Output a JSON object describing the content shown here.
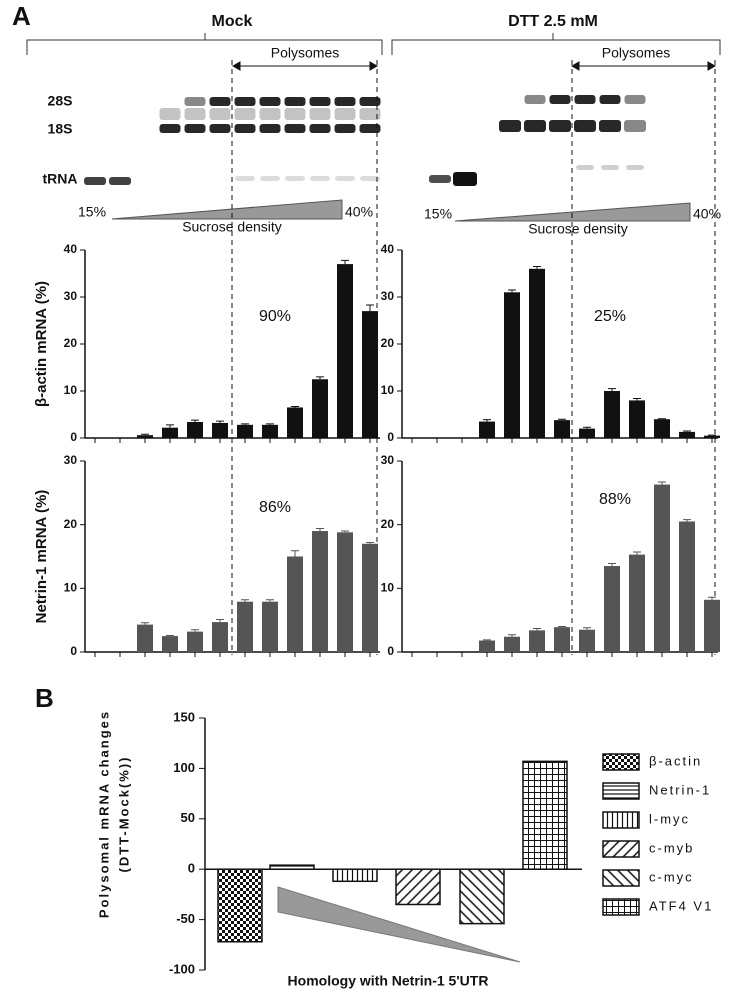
{
  "panel_labels": [
    "A",
    "B"
  ],
  "columns": [
    "Mock",
    "DTT 2.5 mM"
  ],
  "gel": {
    "bands": [
      "28S",
      "18S",
      "tRNA"
    ],
    "polysomes": "Polysomes",
    "low": "15%",
    "high": "40%",
    "gradient": "Sucrose density"
  },
  "chart_data": [
    {
      "type": "bar",
      "ylabel": "β-actin mRNA (%)",
      "annotation": "90%",
      "color": "#111111",
      "values": [
        0.6,
        2.2,
        3.4,
        3.2,
        2.8,
        2.8,
        6.5,
        12.5,
        37,
        27
      ],
      "errors": [
        0.2,
        0.6,
        0.4,
        0.4,
        0.2,
        0.2,
        0.2,
        0.5,
        0.8,
        1.3
      ],
      "ylim": [
        0,
        40
      ],
      "yticks": [
        0,
        10,
        20,
        30,
        40
      ]
    },
    {
      "type": "bar",
      "annotation": "25%",
      "color": "#111111",
      "values": [
        3.5,
        31,
        36,
        3.8,
        2,
        10,
        8,
        4,
        1.3,
        0.5
      ],
      "errors": [
        0.4,
        0.5,
        0.5,
        0.2,
        0.3,
        0.5,
        0.4,
        0.1,
        0.2,
        0.1
      ],
      "ylim": [
        0,
        40
      ],
      "yticks": [
        0,
        10,
        20,
        30,
        40
      ]
    },
    {
      "type": "bar",
      "ylabel": "Netrin-1 mRNA (%)",
      "annotation": "86%",
      "color": "#555555",
      "values": [
        4.3,
        2.5,
        3.2,
        4.7,
        7.9,
        7.9,
        15,
        19,
        18.8,
        17
      ],
      "errors": [
        0.3,
        0.1,
        0.3,
        0.4,
        0.3,
        0.3,
        0.9,
        0.4,
        0.2,
        0.2
      ],
      "ylim": [
        0,
        30
      ],
      "yticks": [
        0,
        10,
        20,
        30
      ]
    },
    {
      "type": "bar",
      "annotation": "88%",
      "color": "#555555",
      "values": [
        1.8,
        2.4,
        3.4,
        3.9,
        3.5,
        13.5,
        15.3,
        26.3,
        20.5,
        8.2
      ],
      "errors": [
        0.1,
        0.3,
        0.3,
        0.1,
        0.3,
        0.4,
        0.4,
        0.4,
        0.3,
        0.4
      ],
      "ylim": [
        0,
        30
      ],
      "yticks": [
        0,
        10,
        20,
        30
      ]
    },
    {
      "type": "pattern-bar",
      "ylabel": [
        "Polysomal mRNA changes",
        "(DTT-Mock(%))"
      ],
      "xlabel": "Homology with Netrin-1 5'UTR",
      "categories": [
        "β-actin",
        "Netrin-1",
        "l-myc",
        "c-myb",
        "c-myc",
        "ATF4 V1"
      ],
      "values": [
        -72,
        4,
        -12,
        -35,
        -54,
        107
      ],
      "patterns": [
        "checker",
        "hlines",
        "vlines",
        "diag-up",
        "diag-down",
        "grid"
      ],
      "legend": "right",
      "ylim": [
        -100,
        150
      ],
      "yticks": [
        -100,
        -50,
        0,
        50,
        100,
        150
      ]
    }
  ]
}
